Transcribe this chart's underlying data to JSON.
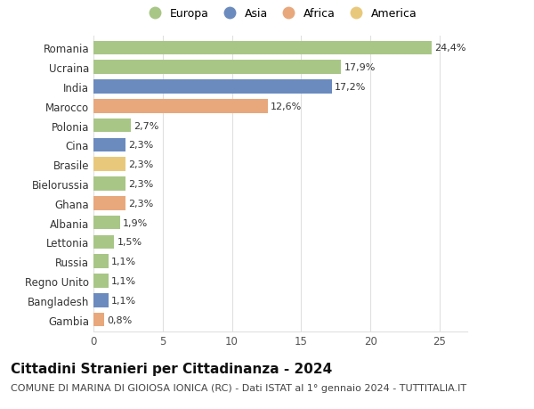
{
  "categories": [
    "Gambia",
    "Bangladesh",
    "Regno Unito",
    "Russia",
    "Lettonia",
    "Albania",
    "Ghana",
    "Bielorussia",
    "Brasile",
    "Cina",
    "Polonia",
    "Marocco",
    "India",
    "Ucraina",
    "Romania"
  ],
  "values": [
    0.8,
    1.1,
    1.1,
    1.1,
    1.5,
    1.9,
    2.3,
    2.3,
    2.3,
    2.3,
    2.7,
    12.6,
    17.2,
    17.9,
    24.4
  ],
  "labels": [
    "0,8%",
    "1,1%",
    "1,1%",
    "1,1%",
    "1,5%",
    "1,9%",
    "2,3%",
    "2,3%",
    "2,3%",
    "2,3%",
    "2,7%",
    "12,6%",
    "17,2%",
    "17,9%",
    "24,4%"
  ],
  "colors": [
    "#e8a87c",
    "#6b8bbf",
    "#a8c686",
    "#a8c686",
    "#a8c686",
    "#a8c686",
    "#e8a87c",
    "#a8c686",
    "#e8c97c",
    "#6b8bbf",
    "#a8c686",
    "#e8a87c",
    "#6b8bbf",
    "#a8c686",
    "#a8c686"
  ],
  "legend_labels": [
    "Europa",
    "Asia",
    "Africa",
    "America"
  ],
  "legend_colors": [
    "#a8c686",
    "#6b8bbf",
    "#e8a87c",
    "#e8c97c"
  ],
  "title": "Cittadini Stranieri per Cittadinanza - 2024",
  "subtitle": "COMUNE DI MARINA DI GIOIOSA IONICA (RC) - Dati ISTAT al 1° gennaio 2024 - TUTTITALIA.IT",
  "xlim": [
    0,
    27
  ],
  "xticks": [
    0,
    5,
    10,
    15,
    20,
    25
  ],
  "background_color": "#ffffff",
  "grid_color": "#e0e0e0",
  "bar_height": 0.72,
  "title_fontsize": 11,
  "subtitle_fontsize": 8,
  "label_fontsize": 8,
  "tick_fontsize": 8.5
}
